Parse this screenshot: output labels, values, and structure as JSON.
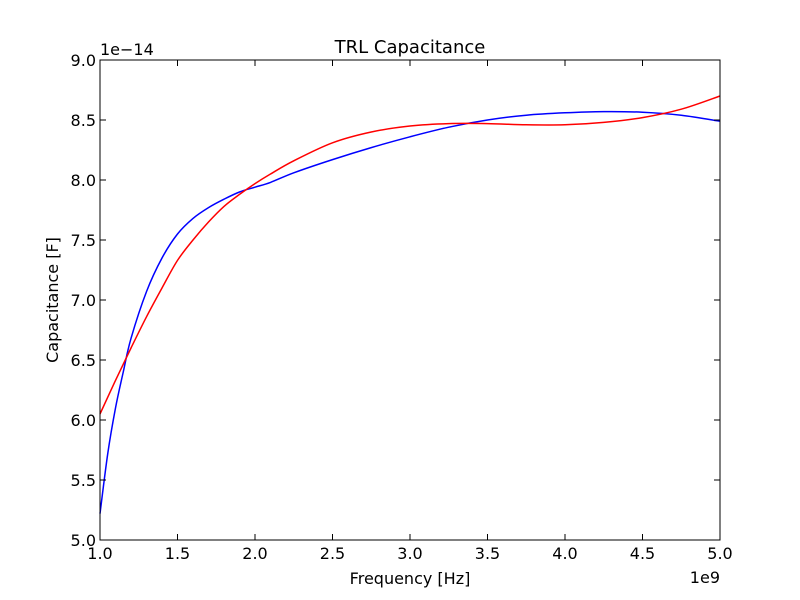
{
  "chart_data": {
    "type": "line",
    "title": "TRL Capacitance",
    "xlabel": "Frequency [Hz]",
    "ylabel": "Capacitance [F]",
    "x_offset_label": "1e9",
    "y_offset_label": "1e−14",
    "xlim": [
      1.0,
      5.0
    ],
    "ylim": [
      5.0,
      9.0
    ],
    "x_ticks": [
      1.0,
      1.5,
      2.0,
      2.5,
      3.0,
      3.5,
      4.0,
      4.5,
      5.0
    ],
    "x_tick_labels": [
      "1.0",
      "1.5",
      "2.0",
      "2.5",
      "3.0",
      "3.5",
      "4.0",
      "4.5",
      "5.0"
    ],
    "y_ticks": [
      5.0,
      5.5,
      6.0,
      6.5,
      7.0,
      7.5,
      8.0,
      8.5,
      9.0
    ],
    "y_tick_labels": [
      "5.0",
      "5.5",
      "6.0",
      "6.5",
      "7.0",
      "7.5",
      "8.0",
      "8.5",
      "9.0"
    ],
    "grid": false,
    "series": [
      {
        "name": "blue",
        "color": "#0000ff",
        "x": [
          1.0,
          1.05,
          1.1,
          1.15,
          1.2,
          1.3,
          1.4,
          1.5,
          1.6,
          1.7,
          1.8,
          1.9,
          2.0,
          2.1,
          2.25,
          2.5,
          2.75,
          3.0,
          3.25,
          3.5,
          3.75,
          4.0,
          4.25,
          4.5,
          4.75,
          5.0
        ],
        "values": [
          5.22,
          5.72,
          6.1,
          6.4,
          6.68,
          7.07,
          7.35,
          7.55,
          7.68,
          7.77,
          7.84,
          7.9,
          7.94,
          7.98,
          8.06,
          8.17,
          8.27,
          8.36,
          8.44,
          8.5,
          8.54,
          8.56,
          8.57,
          8.565,
          8.54,
          8.49
        ]
      },
      {
        "name": "red",
        "color": "#ff0000",
        "x": [
          1.0,
          1.1,
          1.2,
          1.3,
          1.4,
          1.5,
          1.6,
          1.7,
          1.8,
          1.9,
          2.0,
          2.1,
          2.25,
          2.5,
          2.75,
          3.0,
          3.25,
          3.5,
          3.75,
          4.0,
          4.25,
          4.5,
          4.75,
          5.0
        ],
        "values": [
          6.05,
          6.33,
          6.6,
          6.86,
          7.1,
          7.33,
          7.5,
          7.65,
          7.78,
          7.88,
          7.97,
          8.05,
          8.16,
          8.31,
          8.4,
          8.45,
          8.47,
          8.47,
          8.46,
          8.46,
          8.48,
          8.52,
          8.59,
          8.7
        ]
      }
    ]
  }
}
